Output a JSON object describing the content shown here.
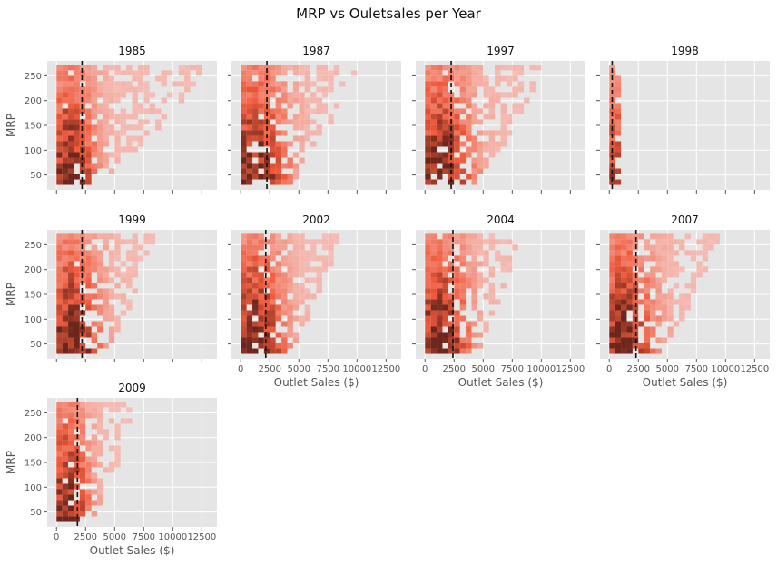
{
  "figure": {
    "suptitle": "MRP vs Ouletsales per Year"
  },
  "chart_data": {
    "type": "heatmap",
    "subtype": "2d-histogram-facet-grid",
    "title": "MRP vs Ouletsales per Year",
    "xlabel": "Outlet Sales ($)",
    "ylabel": "MRP",
    "xlim": [
      -800,
      13800
    ],
    "ylim": [
      20,
      280
    ],
    "xticks": [
      0,
      2500,
      5000,
      7500,
      10000,
      12500
    ],
    "yticks": [
      50,
      100,
      150,
      200,
      250
    ],
    "bin_width_x": 500,
    "bin_width_y": 11,
    "grid": true,
    "reference_line": "dashed vertical line near the mean outlet sales (~2100–2300)",
    "colors": {
      "background": "#e5e5e5",
      "grid": "#ffffff",
      "low": "#f5c9c4",
      "mid": "#f05a3c",
      "high": "#5c1f17",
      "refline": "#111111"
    },
    "facets": [
      {
        "year": "1985",
        "vline": 2200,
        "xmax": 13000,
        "peak": 900,
        "dense_max": 3500
      },
      {
        "year": "1987",
        "vline": 2250,
        "xmax": 10000,
        "peak": 1000,
        "dense_max": 4500
      },
      {
        "year": "1997",
        "vline": 2250,
        "xmax": 10000,
        "peak": 1000,
        "dense_max": 4500
      },
      {
        "year": "1998",
        "vline": 250,
        "xmax": 1000,
        "peak": 250,
        "dense_max": 700
      },
      {
        "year": "1999",
        "vline": 2200,
        "xmax": 8500,
        "peak": 1000,
        "dense_max": 4000
      },
      {
        "year": "2002",
        "vline": 2150,
        "xmax": 8500,
        "peak": 1000,
        "dense_max": 4000
      },
      {
        "year": "2004",
        "vline": 2400,
        "xmax": 8000,
        "peak": 1000,
        "dense_max": 4200
      },
      {
        "year": "2007",
        "vline": 2300,
        "xmax": 9500,
        "peak": 1000,
        "dense_max": 4200
      },
      {
        "year": "2009",
        "vline": 1800,
        "xmax": 6800,
        "peak": 700,
        "dense_max": 3000
      }
    ]
  }
}
